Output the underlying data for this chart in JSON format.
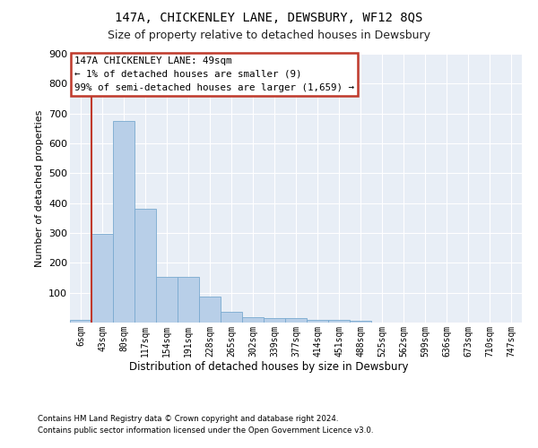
{
  "title": "147A, CHICKENLEY LANE, DEWSBURY, WF12 8QS",
  "subtitle": "Size of property relative to detached houses in Dewsbury",
  "xlabel": "Distribution of detached houses by size in Dewsbury",
  "ylabel": "Number of detached properties",
  "bar_labels": [
    "6sqm",
    "43sqm",
    "80sqm",
    "117sqm",
    "154sqm",
    "191sqm",
    "228sqm",
    "265sqm",
    "302sqm",
    "339sqm",
    "377sqm",
    "414sqm",
    "451sqm",
    "488sqm",
    "525sqm",
    "562sqm",
    "599sqm",
    "636sqm",
    "673sqm",
    "710sqm",
    "747sqm"
  ],
  "bar_values": [
    8,
    297,
    675,
    380,
    153,
    153,
    88,
    37,
    17,
    15,
    14,
    10,
    8,
    5,
    0,
    0,
    0,
    0,
    0,
    0,
    0
  ],
  "bar_color": "#b8cfe8",
  "bar_edge_color": "#7aaad0",
  "vline_color": "#c0392b",
  "annotation_text": "147A CHICKENLEY LANE: 49sqm\n← 1% of detached houses are smaller (9)\n99% of semi-detached houses are larger (1,659) →",
  "annotation_box_color": "#c0392b",
  "annotation_box_fill": "#ffffff",
  "ylim": [
    0,
    900
  ],
  "yticks": [
    0,
    100,
    200,
    300,
    400,
    500,
    600,
    700,
    800,
    900
  ],
  "bg_color": "#e8eef6",
  "footer_line1": "Contains HM Land Registry data © Crown copyright and database right 2024.",
  "footer_line2": "Contains public sector information licensed under the Open Government Licence v3.0."
}
